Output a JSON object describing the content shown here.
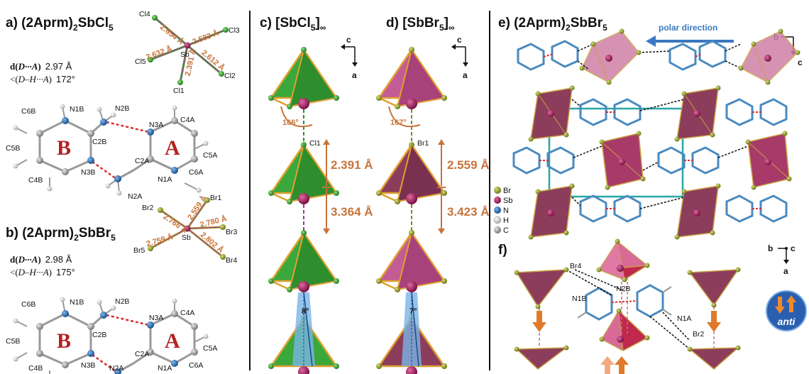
{
  "panels": {
    "a": {
      "label": "a) (2Aprm)",
      "sub": "2",
      "rest": "SbCl",
      "sub2": "5"
    },
    "b": {
      "label": "b) (2Aprm)",
      "sub": "2",
      "rest": "SbBr",
      "sub2": "5"
    },
    "c": {
      "label": "c) [SbCl",
      "sub": "5",
      "rest": "]",
      "sub2": "∞"
    },
    "d": {
      "label": "d) [SbBr",
      "sub": "5",
      "rest": "]",
      "sub2": "∞"
    },
    "e": {
      "label": "e) (2Aprm)",
      "sub": "2",
      "rest": "SbBr",
      "sub2": "5"
    },
    "f": {
      "label": "f)"
    }
  },
  "hbond_a": {
    "d_line": "2.97 Å",
    "angle_line": "172°"
  },
  "hbond_b": {
    "d_line": "2.98 Å",
    "angle_line": "175°"
  },
  "hb_labels": {
    "d_prefix": "d(",
    "d_body": "D···A",
    "d_suffix": ")",
    "a_prefix": "<(",
    "a_body": "D–H···A",
    "a_suffix": ")"
  },
  "sbcl5": {
    "atoms": [
      "Cl4",
      "Cl3",
      "Cl5",
      "Sb",
      "Cl2",
      "Cl1"
    ],
    "bonds": [
      "2.654 Å",
      "2.583 Å",
      "2.632 Å",
      "2.391 Å",
      "2.612 Å"
    ]
  },
  "sbbr5": {
    "atoms": [
      "Br2",
      "Br1",
      "Br3",
      "Br5",
      "Sb",
      "Br4"
    ],
    "bonds": [
      "2.766 Å",
      "2.559 Å",
      "2.780 Å",
      "2.759 Å",
      "2.802 Å"
    ]
  },
  "molecule": {
    "ring_b": "B",
    "ring_a": "A",
    "atoms": [
      "C6B",
      "N1B",
      "N2B",
      "C2B",
      "C5B",
      "N3B",
      "C4B",
      "N3A",
      "C4A",
      "C5A",
      "C2A",
      "N2A",
      "N1A",
      "C6A"
    ]
  },
  "chain_cl": {
    "atom": "Cl1",
    "short": "2.391 Å",
    "long": "3.364 Å",
    "angle": "166°",
    "tilt": "8°"
  },
  "chain_br": {
    "atom": "Br1",
    "short": "2.559 Å",
    "long": "3.423 Å",
    "angle": "167°",
    "tilt": "7°"
  },
  "axes_cd": {
    "x": "c",
    "y": "a"
  },
  "axes_e": {
    "x": "b",
    "y": "c"
  },
  "axes_f": {
    "x": "b",
    "z": "c",
    "y": "a"
  },
  "polar": "polar direction",
  "legend": [
    "Br",
    "Sb",
    "N",
    "H",
    "C"
  ],
  "legend_colors": [
    "#9aaa2a",
    "#9b1f5a",
    "#2a6fb3",
    "#d8d8d8",
    "#9a9a9a"
  ],
  "panel_f_labels": [
    "Br4",
    "N2B",
    "N1B",
    "N1A",
    "Br2"
  ],
  "anti": "anti",
  "colors": {
    "green": "#38a83a",
    "pink": "#c45b95",
    "maroon": "#8c3d5c",
    "crimson": "#c0284e",
    "orange": "#e07a2a",
    "teal": "#2aa6a6",
    "blue": "#3a78c0"
  }
}
